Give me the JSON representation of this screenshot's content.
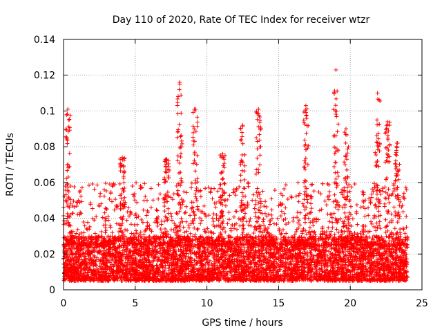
{
  "chart_data": {
    "type": "scatter",
    "title": "Day 110 of 2020, Rate Of TEC Index for receiver wtzr",
    "xlabel": "GPS time / hours",
    "ylabel": "ROTI / TECUs",
    "xlim": [
      0,
      25
    ],
    "ylim": [
      0,
      0.14
    ],
    "xticks": [
      0,
      5,
      10,
      15,
      20,
      25
    ],
    "yticks": [
      0,
      0.02,
      0.04,
      0.06,
      0.08,
      0.1,
      0.12,
      0.14
    ],
    "xtick_labels": [
      "0",
      "5",
      "10",
      "15",
      "20",
      "25"
    ],
    "ytick_labels": [
      "0",
      "0.02",
      "0.04",
      "0.06",
      "0.08",
      "0.1",
      "0.12",
      "0.14"
    ],
    "grid": true,
    "marker": "+",
    "color": "#ff0000",
    "x_range_of_data": [
      0,
      24
    ],
    "typical_value_range": [
      0.005,
      0.03
    ],
    "spikes": [
      {
        "x": 0.3,
        "y": 0.101
      },
      {
        "x": 4.1,
        "y": 0.074
      },
      {
        "x": 7.2,
        "y": 0.073
      },
      {
        "x": 8.1,
        "y": 0.116
      },
      {
        "x": 9.2,
        "y": 0.101
      },
      {
        "x": 11.1,
        "y": 0.076
      },
      {
        "x": 12.5,
        "y": 0.092
      },
      {
        "x": 13.6,
        "y": 0.101
      },
      {
        "x": 16.9,
        "y": 0.103
      },
      {
        "x": 19.0,
        "y": 0.123
      },
      {
        "x": 19.7,
        "y": 0.09
      },
      {
        "x": 21.9,
        "y": 0.11
      },
      {
        "x": 22.6,
        "y": 0.094
      },
      {
        "x": 23.3,
        "y": 0.082
      }
    ]
  }
}
